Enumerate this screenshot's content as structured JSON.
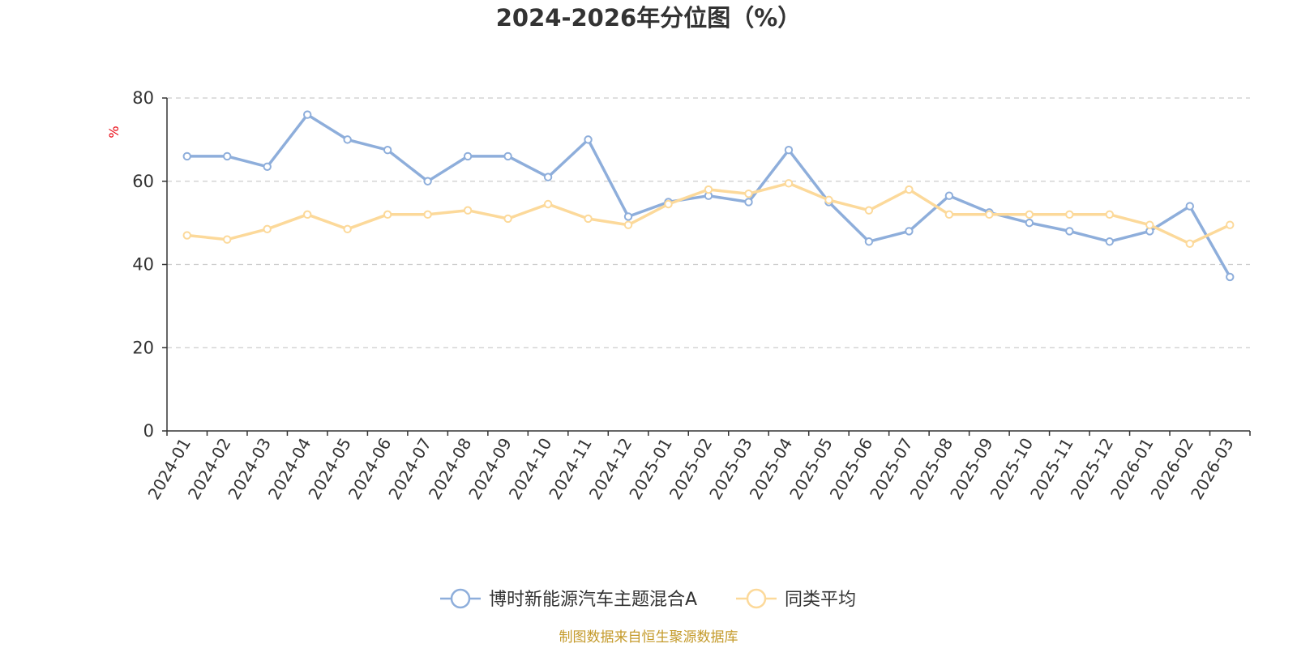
{
  "chart_data": {
    "type": "line",
    "title": "2024-2026年分位图（%）",
    "ylabel": "%",
    "ylim": [
      0,
      80
    ],
    "yticks": [
      0,
      20,
      40,
      60,
      80
    ],
    "grid": true,
    "legend_position": "bottom",
    "categories": [
      "2024-01",
      "2024-02",
      "2024-03",
      "2024-04",
      "2024-05",
      "2024-06",
      "2024-07",
      "2024-08",
      "2024-09",
      "2024-10",
      "2024-11",
      "2024-12",
      "2025-01",
      "2025-02",
      "2025-03",
      "2025-04",
      "2025-05",
      "2025-06",
      "2025-07",
      "2025-08",
      "2025-09",
      "2025-10",
      "2025-11",
      "2025-12",
      "2026-01",
      "2026-02",
      "2026-03"
    ],
    "series": [
      {
        "name": "博时新能源汽车主题混合A",
        "color": "#8eaedb",
        "values": [
          66,
          66,
          63.5,
          76,
          70,
          67.5,
          60,
          66,
          66,
          61,
          70,
          51.5,
          55,
          56.5,
          55,
          67.5,
          55,
          45.5,
          48,
          56.5,
          52.5,
          50,
          48,
          45.5,
          48,
          54,
          37
        ]
      },
      {
        "name": "同类平均",
        "color": "#fcd99a",
        "values": [
          47,
          46,
          48.5,
          52,
          48.5,
          52,
          52,
          53,
          51,
          54.5,
          51,
          49.5,
          54.5,
          58,
          57,
          59.5,
          55.5,
          53,
          58,
          52,
          52,
          52,
          52,
          52,
          49.5,
          45,
          49.5
        ]
      }
    ]
  },
  "footer": {
    "source": "制图数据来自恒生聚源数据库"
  }
}
